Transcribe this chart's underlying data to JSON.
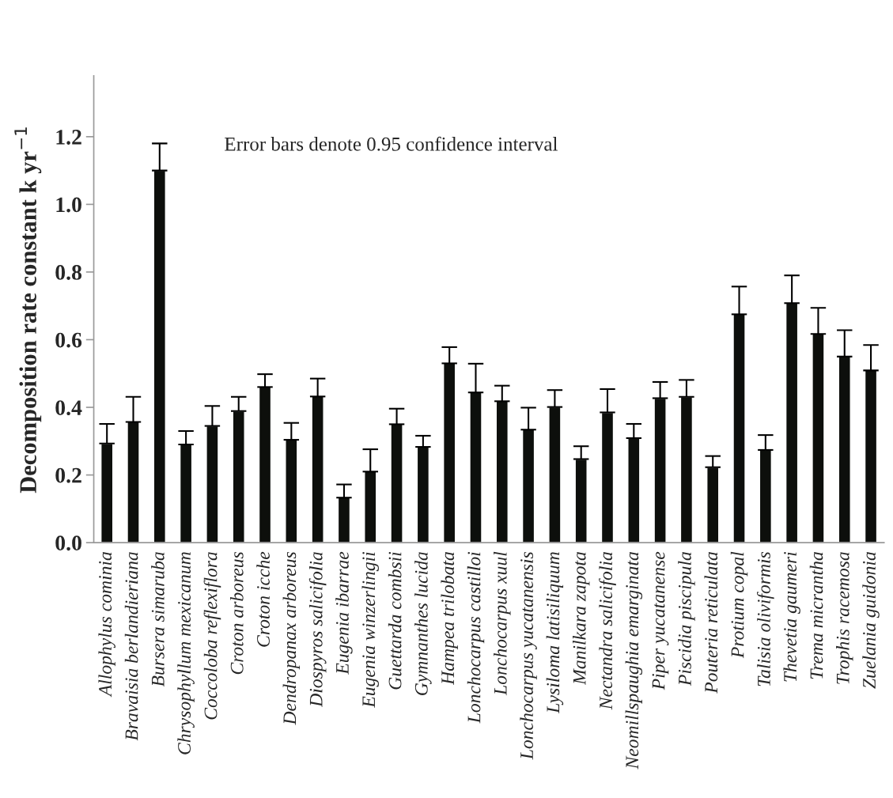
{
  "chart_data": {
    "type": "bar",
    "ylabel": "Decomposition rate constant k yr$^{−1}$",
    "annotations": [
      "Error bars denote 0.95 confidence interval"
    ],
    "categories": [
      "Allophylus cominia",
      "Bravaisia berlandieriana",
      "Bursera simaruba",
      "Chrysophyllum mexicanum",
      "Coccoloba reflexiflora",
      "Croton arboreus",
      "Croton icche",
      "Dendropanax arboreus",
      "Diospyros salicifolia",
      "Eugenia ibarrae",
      "Eugenia winzerlingii",
      "Guettarda combsii",
      "Gymnanthes lucida",
      "Hampea trilobata",
      "Lonchocarpus castilloi",
      "Lonchocarpus xuul",
      "Lonchocarpus yucatanensis",
      "Lysiloma latisiliquum",
      "Manilkara zapota",
      "Nectandra salicifolia",
      "Neomillspaughia emarginata",
      "Piper yucatanense",
      "Piscidia piscipula",
      "Pouteria reticulata",
      "Protium copal",
      "Talisia oliviformis",
      "Thevetia gaumeri",
      "Trema micrantha",
      "Trophis racemosa",
      "Zuelania guidonia"
    ],
    "values": [
      0.293,
      0.357,
      1.1,
      0.29,
      0.345,
      0.389,
      0.46,
      0.304,
      0.432,
      0.133,
      0.21,
      0.35,
      0.283,
      0.53,
      0.444,
      0.418,
      0.334,
      0.401,
      0.247,
      0.385,
      0.309,
      0.427,
      0.431,
      0.223,
      0.675,
      0.274,
      0.708,
      0.617,
      0.55,
      0.509
    ],
    "errors": [
      [
        0.293,
        0.351
      ],
      [
        0.357,
        0.431
      ],
      [
        1.1,
        1.18
      ],
      [
        0.29,
        0.33
      ],
      [
        0.345,
        0.404
      ],
      [
        0.389,
        0.431
      ],
      [
        0.46,
        0.498
      ],
      [
        0.304,
        0.354
      ],
      [
        0.432,
        0.485
      ],
      [
        0.133,
        0.172
      ],
      [
        0.21,
        0.276
      ],
      [
        0.35,
        0.396
      ],
      [
        0.283,
        0.316
      ],
      [
        0.53,
        0.578
      ],
      [
        0.444,
        0.529
      ],
      [
        0.418,
        0.464
      ],
      [
        0.334,
        0.399
      ],
      [
        0.401,
        0.451
      ],
      [
        0.247,
        0.285
      ],
      [
        0.385,
        0.454
      ],
      [
        0.309,
        0.351
      ],
      [
        0.427,
        0.475
      ],
      [
        0.431,
        0.481
      ],
      [
        0.223,
        0.256
      ],
      [
        0.675,
        0.757
      ],
      [
        0.274,
        0.318
      ],
      [
        0.708,
        0.79
      ],
      [
        0.617,
        0.694
      ],
      [
        0.55,
        0.628
      ],
      [
        0.509,
        0.584
      ]
    ],
    "color": "#0d0f0c",
    "ylim": [
      0,
      1.38
    ],
    "yticks": [
      {
        "value": 0,
        "label": "0.0"
      },
      {
        "value": 0.2,
        "label": "0.2"
      },
      {
        "value": 0.4,
        "label": "0.4"
      },
      {
        "value": 0.6,
        "label": "0.6"
      },
      {
        "value": 0.8,
        "label": "0.8"
      },
      {
        "value": 1.0,
        "label": "1.0"
      },
      {
        "value": 1.2,
        "label": "1.2"
      }
    ],
    "grid": false,
    "legend": false
  }
}
